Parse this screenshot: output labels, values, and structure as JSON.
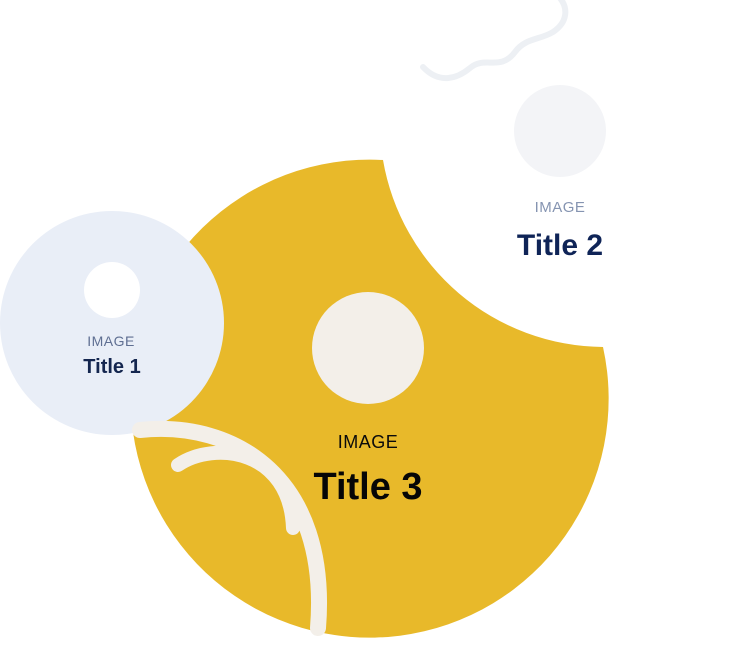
{
  "cards": [
    {
      "caption": "IMAGE",
      "title": "Title 1"
    },
    {
      "caption": "IMAGE",
      "title": "Title 2"
    },
    {
      "caption": "IMAGE",
      "title": "Title 3"
    }
  ],
  "colors": {
    "card1_bg": "#e9eef7",
    "card3_bg": "#e8b92a",
    "image_placeholder": "#f4f5f7",
    "image_placeholder_warm": "#f3efe9",
    "navy": "#0f2457",
    "muted": "#8594b1"
  }
}
